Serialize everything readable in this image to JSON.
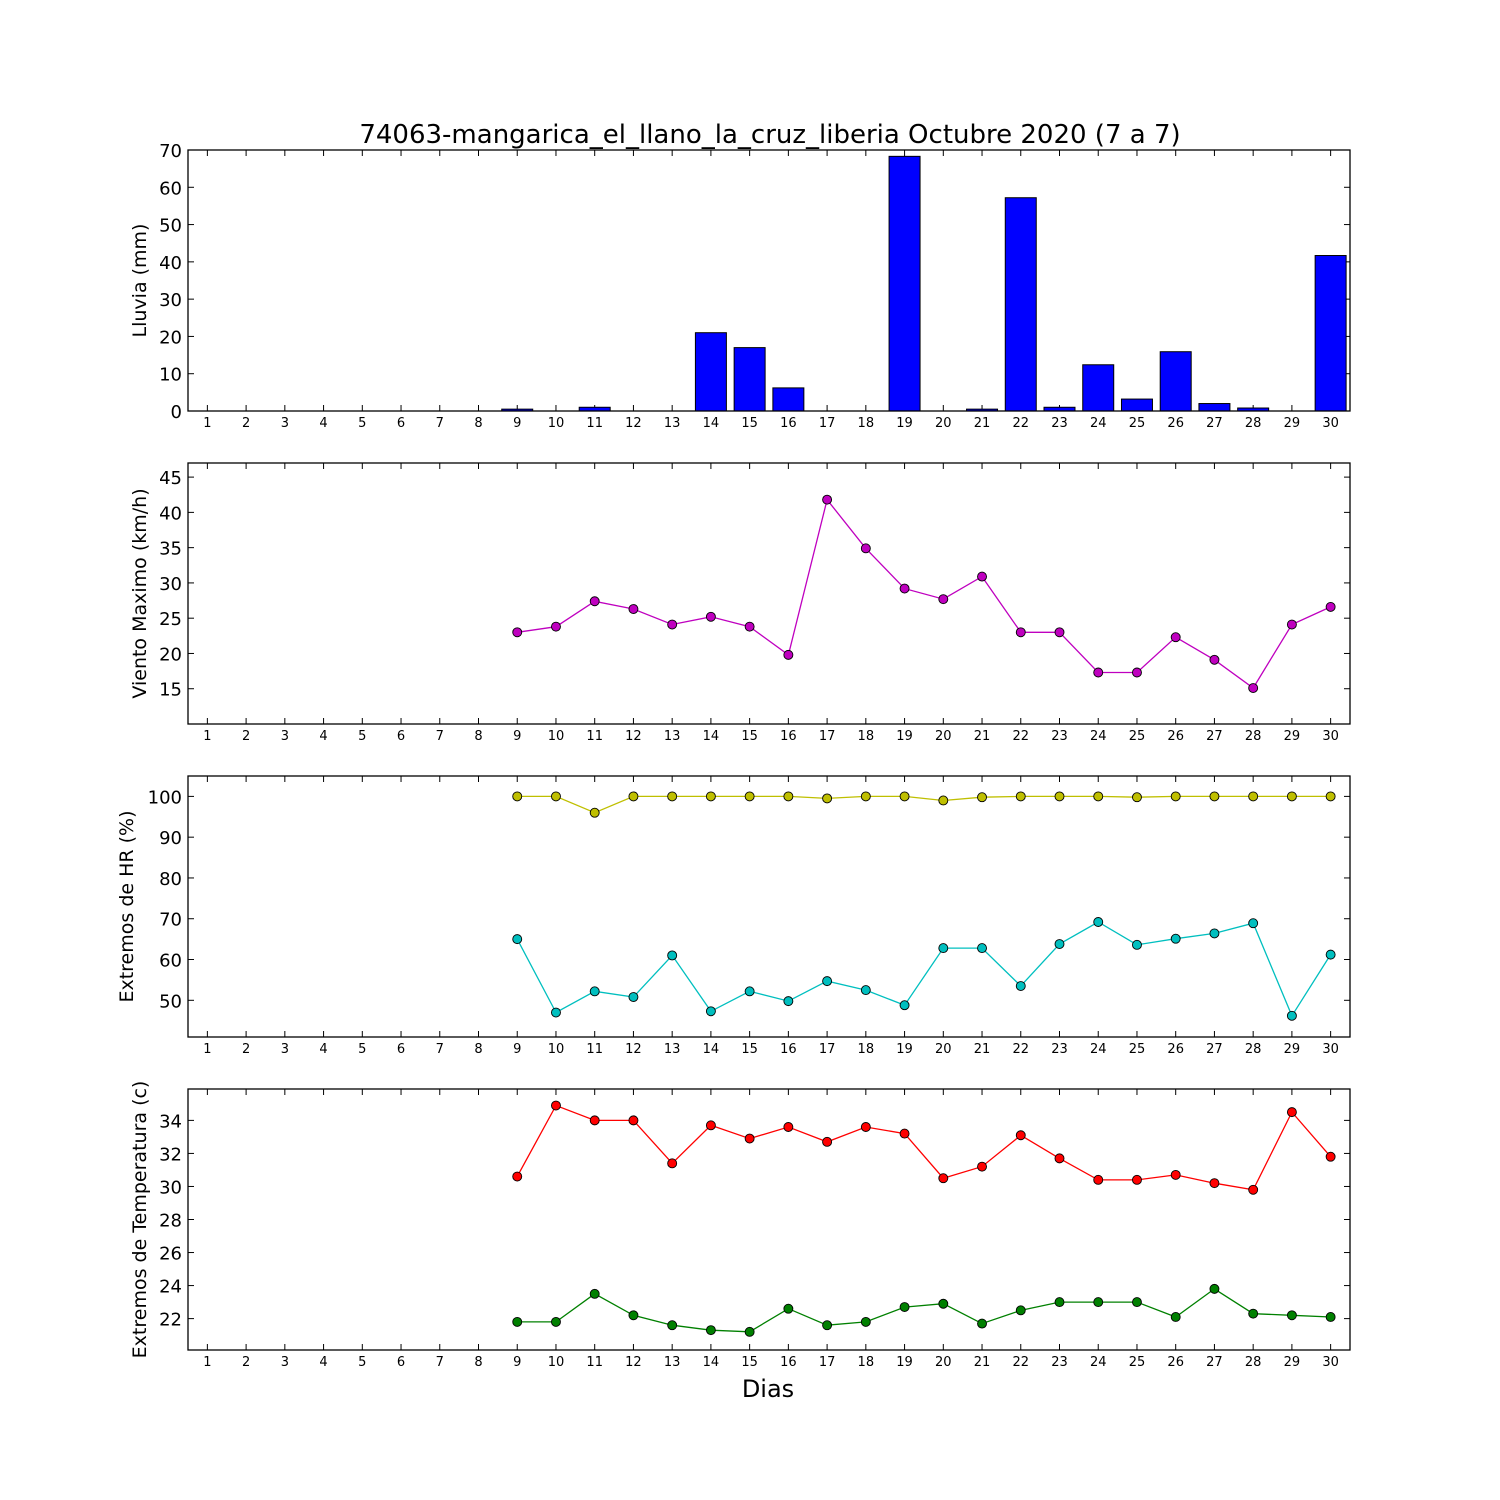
{
  "title": "74063-mangarica_el_llano_la_cruz_liberia Octubre 2020  (7 a 7)",
  "xlabel": "Dias",
  "days": [
    1,
    2,
    3,
    4,
    5,
    6,
    7,
    8,
    9,
    10,
    11,
    12,
    13,
    14,
    15,
    16,
    17,
    18,
    19,
    20,
    21,
    22,
    23,
    24,
    25,
    26,
    27,
    28,
    29,
    30
  ],
  "chart_data": [
    {
      "type": "bar",
      "ylabel": "Lluvia (mm)",
      "ylim": [
        0,
        70
      ],
      "yticks": [
        0,
        10,
        20,
        30,
        40,
        50,
        60,
        70
      ],
      "color": "#0000ff",
      "x": [
        1,
        2,
        3,
        4,
        5,
        6,
        7,
        8,
        9,
        10,
        11,
        12,
        13,
        14,
        15,
        16,
        17,
        18,
        19,
        20,
        21,
        22,
        23,
        24,
        25,
        26,
        27,
        28,
        29,
        30
      ],
      "values": [
        0,
        0,
        0,
        0,
        0,
        0,
        0,
        0,
        0.5,
        0,
        1.0,
        0,
        0,
        21.0,
        17.0,
        6.2,
        0,
        0,
        68.3,
        0,
        0.5,
        57.2,
        1.0,
        12.4,
        3.2,
        15.9,
        2.0,
        0.8,
        0,
        41.7
      ]
    },
    {
      "type": "line",
      "ylabel": "Viento Maximo (km/h)",
      "ylim": [
        10,
        47
      ],
      "yticks": [
        15,
        20,
        25,
        30,
        35,
        40,
        45
      ],
      "series": [
        {
          "color": "#bf00bf",
          "x": [
            9,
            10,
            11,
            12,
            13,
            14,
            15,
            16,
            17,
            18,
            19,
            20,
            21,
            22,
            23,
            24,
            25,
            26,
            27,
            28,
            29,
            30
          ],
          "values": [
            23.0,
            23.8,
            27.4,
            26.3,
            24.1,
            25.2,
            23.8,
            19.8,
            41.8,
            34.9,
            29.2,
            27.7,
            30.9,
            23.0,
            23.0,
            17.3,
            17.3,
            22.3,
            19.1,
            15.1,
            24.1,
            26.6
          ]
        }
      ]
    },
    {
      "type": "line",
      "ylabel": "Extremos de HR (%)",
      "ylim": [
        41,
        105
      ],
      "yticks": [
        50,
        60,
        70,
        80,
        90,
        100
      ],
      "series": [
        {
          "color": "#bfbf00",
          "x": [
            9,
            10,
            11,
            12,
            13,
            14,
            15,
            16,
            17,
            18,
            19,
            20,
            21,
            22,
            23,
            24,
            25,
            26,
            27,
            28,
            29,
            30
          ],
          "values": [
            100,
            100,
            96,
            100,
            100,
            100,
            100,
            100,
            99.5,
            100,
            100,
            99,
            99.8,
            100,
            100,
            100,
            99.8,
            100,
            100,
            100,
            100,
            100
          ]
        },
        {
          "color": "#00bfbf",
          "x": [
            9,
            10,
            11,
            12,
            13,
            14,
            15,
            16,
            17,
            18,
            19,
            20,
            21,
            22,
            23,
            24,
            25,
            26,
            27,
            28,
            29,
            30
          ],
          "values": [
            65,
            47,
            52.2,
            50.8,
            61,
            47.3,
            52.2,
            49.8,
            54.7,
            52.5,
            48.8,
            62.8,
            62.8,
            53.5,
            63.8,
            69.2,
            63.6,
            65.1,
            66.4,
            68.9,
            46.2,
            61.2
          ]
        }
      ]
    },
    {
      "type": "line",
      "ylabel": "Extremos de Temperatura (c)",
      "ylim": [
        20.1,
        35.9
      ],
      "yticks": [
        22,
        24,
        26,
        28,
        30,
        32,
        34
      ],
      "series": [
        {
          "color": "#ff0000",
          "x": [
            9,
            10,
            11,
            12,
            13,
            14,
            15,
            16,
            17,
            18,
            19,
            20,
            21,
            22,
            23,
            24,
            25,
            26,
            27,
            28,
            29,
            30
          ],
          "values": [
            30.6,
            34.9,
            34.0,
            34.0,
            31.4,
            33.7,
            32.9,
            33.6,
            32.7,
            33.6,
            33.2,
            30.5,
            31.2,
            33.1,
            31.7,
            30.4,
            30.4,
            30.7,
            30.2,
            29.8,
            34.5,
            31.8
          ]
        },
        {
          "color": "#008000",
          "x": [
            9,
            10,
            11,
            12,
            13,
            14,
            15,
            16,
            17,
            18,
            19,
            20,
            21,
            22,
            23,
            24,
            25,
            26,
            27,
            28,
            29,
            30
          ],
          "values": [
            21.8,
            21.8,
            23.5,
            22.2,
            21.6,
            21.3,
            21.2,
            22.6,
            21.6,
            21.8,
            22.7,
            22.9,
            21.7,
            22.5,
            23.0,
            23.0,
            23.0,
            22.1,
            23.8,
            22.3,
            22.2,
            22.1
          ]
        }
      ]
    }
  ]
}
